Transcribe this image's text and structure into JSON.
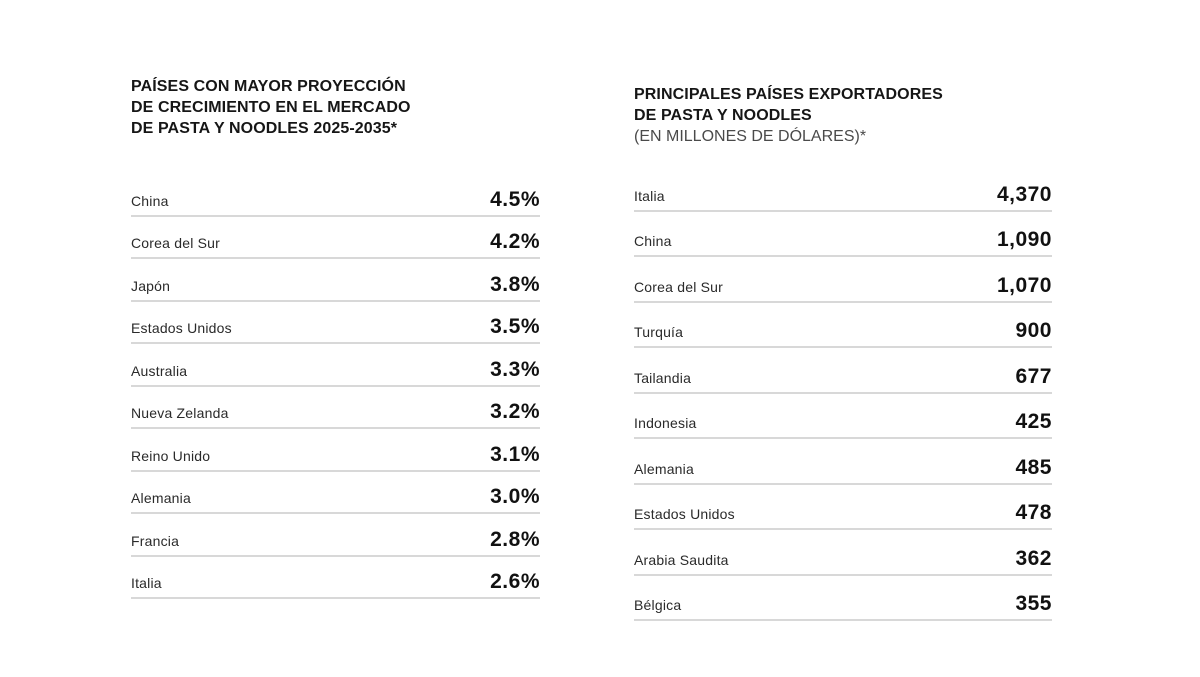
{
  "left_table": {
    "title_lines": [
      "PAÍSES CON MAYOR PROYECCIÓN",
      "DE CRECIMIENTO EN EL MERCADO",
      "DE PASTA Y NOODLES 2025-2035*"
    ],
    "rows": [
      {
        "country": "China",
        "value": "4.5%"
      },
      {
        "country": "Corea del Sur",
        "value": "4.2%"
      },
      {
        "country": "Japón",
        "value": "3.8%"
      },
      {
        "country": "Estados Unidos",
        "value": "3.5%"
      },
      {
        "country": "Australia",
        "value": "3.3%"
      },
      {
        "country": "Nueva Zelanda",
        "value": "3.2%"
      },
      {
        "country": "Reino Unido",
        "value": "3.1%"
      },
      {
        "country": "Alemania",
        "value": "3.0%"
      },
      {
        "country": "Francia",
        "value": "2.8%"
      },
      {
        "country": "Italia",
        "value": "2.6%"
      }
    ]
  },
  "right_table": {
    "title_lines": [
      "PRINCIPALES PAÍSES EXPORTADORES",
      "DE PASTA Y NOODLES"
    ],
    "subtitle": "(EN MILLONES DE DÓLARES)*",
    "rows": [
      {
        "country": "Italia",
        "value": "4,370"
      },
      {
        "country": "China",
        "value": "1,090"
      },
      {
        "country": "Corea del Sur",
        "value": "1,070"
      },
      {
        "country": "Turquía",
        "value": "900"
      },
      {
        "country": "Tailandia",
        "value": "677"
      },
      {
        "country": "Indonesia",
        "value": "425"
      },
      {
        "country": "Alemania",
        "value": "485"
      },
      {
        "country": "Estados Unidos",
        "value": "478"
      },
      {
        "country": "Arabia Saudita",
        "value": "362"
      },
      {
        "country": "Bélgica",
        "value": "355"
      }
    ]
  }
}
